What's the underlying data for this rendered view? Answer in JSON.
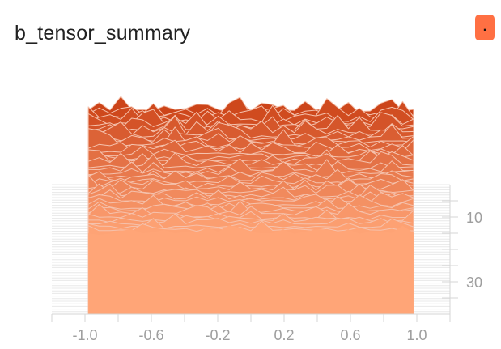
{
  "title": "b_tensor_summary",
  "expand_button_label": ".",
  "chart_data": {
    "type": "area",
    "title": "b_tensor_summary",
    "mode": "offset-histogram",
    "xlabel": "",
    "ylabel": "",
    "x_ticks": [
      "-1.0",
      "-0.6",
      "-0.2",
      "0.2",
      "0.6",
      "1.0"
    ],
    "x_tick_values": [
      -1.0,
      -0.6,
      -0.2,
      0.2,
      0.6,
      1.0
    ],
    "xlim": [
      -1.2,
      1.2
    ],
    "data_xrange": [
      -0.98,
      0.98
    ],
    "y_ticks": [
      "10",
      "30"
    ],
    "y_tick_values": [
      10,
      30
    ],
    "steps": 40,
    "ylim": [
      0,
      40
    ],
    "colors": {
      "back": "#cc4419",
      "front": "#ffa577",
      "edge": "#f5c2ad",
      "axis": "#e0e0e0",
      "tick_text": "#9e9e9e"
    }
  }
}
